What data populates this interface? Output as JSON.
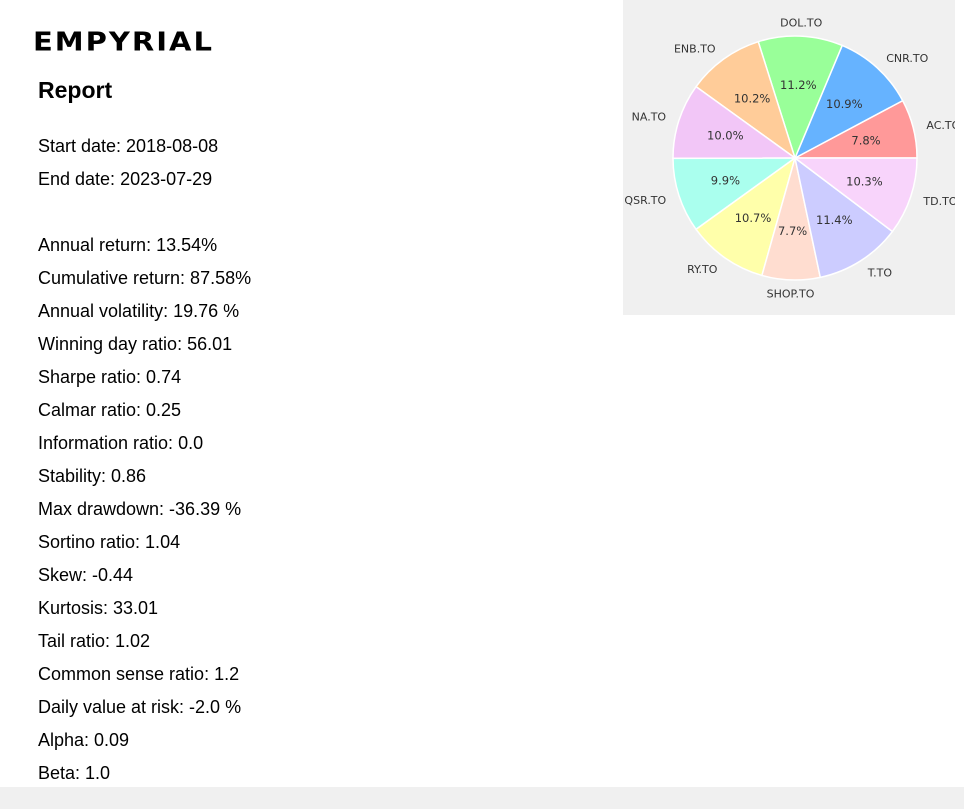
{
  "header": {
    "logo_text": "EMPYRIAL",
    "report_title": "Report"
  },
  "dates": {
    "start": "Start date: 2018-08-08",
    "end": "End date: 2023-07-29"
  },
  "metrics": [
    "Annual return: 13.54%",
    "Cumulative return: 87.58%",
    "Annual volatility: 19.76 %",
    "Winning day ratio: 56.01",
    "Sharpe ratio: 0.74",
    "Calmar ratio: 0.25",
    "Information ratio: 0.0",
    "Stability: 0.86",
    "Max drawdown: -36.39 %",
    "Sortino ratio: 1.04",
    "Skew: -0.44",
    "Kurtosis: 33.01",
    "Tail ratio: 1.02",
    "Common sense ratio: 1.2",
    "Daily value at risk: -2.0 %",
    "Alpha: 0.09",
    "Beta: 1.0"
  ],
  "chart_data": {
    "type": "pie",
    "start_angle_deg": 0,
    "direction": "counterclockwise",
    "slices": [
      {
        "label": "AC.TO",
        "pct_label": "7.8%",
        "value": 7.8,
        "color": "#ff9999"
      },
      {
        "label": "CNR.TO",
        "pct_label": "10.9%",
        "value": 10.9,
        "color": "#66b3ff"
      },
      {
        "label": "DOL.TO",
        "pct_label": "11.2%",
        "value": 11.2,
        "color": "#99ff99"
      },
      {
        "label": "ENB.TO",
        "pct_label": "10.2%",
        "value": 10.2,
        "color": "#ffcc99"
      },
      {
        "label": "NA.TO",
        "pct_label": "10.0%",
        "value": 10.0,
        "color": "#f2c6f7"
      },
      {
        "label": "QSR.TO",
        "pct_label": "9.9%",
        "value": 9.9,
        "color": "#aaffee"
      },
      {
        "label": "RY.TO",
        "pct_label": "10.7%",
        "value": 10.7,
        "color": "#ffffaa"
      },
      {
        "label": "SHOP.TO",
        "pct_label": "7.7%",
        "value": 7.7,
        "color": "#ffddd0"
      },
      {
        "label": "T.TO",
        "pct_label": "11.4%",
        "value": 11.4,
        "color": "#ccccff"
      },
      {
        "label": "TD.TO",
        "pct_label": "10.3%",
        "value": 10.3,
        "color": "#f8d4fb"
      }
    ]
  }
}
